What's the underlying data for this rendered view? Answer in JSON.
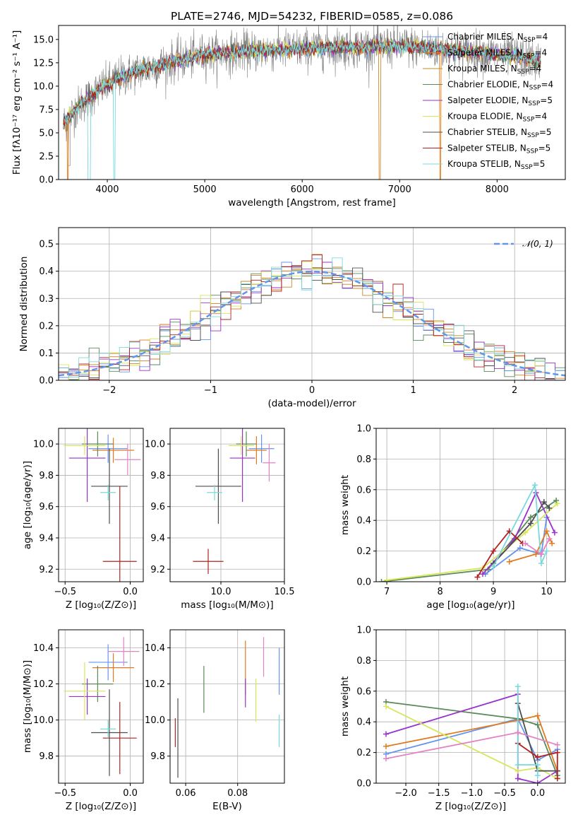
{
  "colors": {
    "blue": "#6495ed",
    "orange": "#e07b20",
    "amber": "#c8882a",
    "green": "#5a8a5a",
    "purple": "#9932cc",
    "yellow": "#d8e65a",
    "dark": "#4d4d4d",
    "red": "#b22222",
    "cyan": "#7ad9dc",
    "pink": "#e383c3",
    "norm": "#6495ed"
  },
  "chart_data": [
    {
      "type": "line",
      "title": "PLATE=2746, MJD=54232, FIBERID=0585, z=0.086",
      "xlabel": "wavelength [Angstrom, rest frame]",
      "ylabel": "Flux [fλ10⁻¹⁷ erg cm⁻² s⁻¹ A⁻¹]",
      "xlim": [
        3500,
        8700
      ],
      "ylim": [
        0,
        16.5
      ],
      "xticks": [
        "4000",
        "5000",
        "6000",
        "7000",
        "8000"
      ],
      "yticks": [
        "0.0",
        "2.5",
        "5.0",
        "7.5",
        "10.0",
        "12.5",
        "15.0"
      ],
      "legend_position": "right",
      "continuum": {
        "x": [
          3550,
          3700,
          3900,
          4100,
          4300,
          4600,
          5000,
          5400,
          5800,
          6200,
          6600,
          7000,
          7400,
          7800,
          8200,
          8450
        ],
        "y": [
          6.0,
          7.8,
          9.5,
          10.8,
          11.6,
          12.4,
          13.4,
          13.7,
          13.9,
          14.1,
          14.2,
          14.3,
          14.0,
          13.6,
          13.2,
          12.6
        ]
      },
      "series": [
        {
          "name": "Chabrier MILES, N_SSP=4",
          "color": "blue"
        },
        {
          "name": "Salpeter MILES, N_SSP=4",
          "color": "orange"
        },
        {
          "name": "Kroupa MILES, N_SSP=4",
          "color": "amber"
        },
        {
          "name": "Chabrier ELODIE, N_SSP=4",
          "color": "green"
        },
        {
          "name": "Salpeter ELODIE, N_SSP=5",
          "color": "purple"
        },
        {
          "name": "Kroupa ELODIE, N_SSP=4",
          "color": "yellow"
        },
        {
          "name": "Chabrier STELIB, N_SSP=5",
          "color": "dark"
        },
        {
          "name": "Salpeter STELIB, N_SSP=5",
          "color": "red"
        },
        {
          "name": "Kroupa STELIB, N_SSP=5",
          "color": "cyan"
        }
      ],
      "legend": [
        {
          "model": "Chabrier MILES, N",
          "sub": "SSP",
          "n": "=4",
          "color": "blue"
        },
        {
          "model": "Salpeter MILES, N",
          "sub": "SSP",
          "n": "=4",
          "color": "orange"
        },
        {
          "model": "Kroupa MILES, N",
          "sub": "SSP",
          "n": "=4",
          "color": "amber"
        },
        {
          "model": "Chabrier ELODIE, N",
          "sub": "SSP",
          "n": "=4",
          "color": "green"
        },
        {
          "model": "Salpeter ELODIE, N",
          "sub": "SSP",
          "n": "=5",
          "color": "purple"
        },
        {
          "model": "Kroupa ELODIE, N",
          "sub": "SSP",
          "n": "=4",
          "color": "yellow"
        },
        {
          "model": "Chabrier STELIB, N",
          "sub": "SSP",
          "n": "=5",
          "color": "dark"
        },
        {
          "model": "Salpeter STELIB, N",
          "sub": "SSP",
          "n": "=5",
          "color": "red"
        },
        {
          "model": "Kroupa STELIB, N",
          "sub": "SSP",
          "n": "=5",
          "color": "cyan"
        }
      ]
    },
    {
      "type": "bar",
      "xlabel": "(data-model)/error",
      "ylabel": "Normed distribution",
      "xlim": [
        -2.5,
        2.5
      ],
      "ylim": [
        0,
        0.56
      ],
      "xticks": [
        "−2",
        "−1",
        "0",
        "1",
        "2"
      ],
      "yticks": [
        "0.0",
        "0.1",
        "0.2",
        "0.3",
        "0.4",
        "0.5"
      ],
      "legend_label": "𝒩(0, 1)",
      "legend_position": "top-right",
      "bin_width": 0.1,
      "histogram_colors": [
        "blue",
        "orange",
        "amber",
        "green",
        "purple",
        "yellow",
        "dark",
        "red",
        "cyan"
      ],
      "reference_curve": "standard normal"
    },
    {
      "type": "scatter",
      "xlabel": "Z [log₁₀(Z/Z⊙)]",
      "ylabel": "age  [log₁₀(age/yr)]",
      "xlim": [
        -0.55,
        0.1
      ],
      "ylim": [
        9.12,
        10.1
      ],
      "xticks": [
        "−0.5",
        "0.0"
      ],
      "yticks": [
        "9.2",
        "9.4",
        "9.6",
        "9.8",
        "10.0"
      ],
      "points": [
        {
          "c": "blue",
          "x": -0.17,
          "dx": 0.15,
          "y": 9.97,
          "dy": 0.09
        },
        {
          "c": "orange",
          "x": -0.13,
          "dx": 0.16,
          "y": 9.96,
          "dy": 0.08
        },
        {
          "c": "green",
          "x": -0.25,
          "dx": 0.12,
          "y": 10.0,
          "dy": 0.08
        },
        {
          "c": "purple",
          "x": -0.33,
          "dx": 0.14,
          "y": 9.91,
          "dy": 0.28
        },
        {
          "c": "yellow",
          "x": -0.35,
          "dx": 0.16,
          "y": 9.99,
          "dy": 0.06
        },
        {
          "c": "dark",
          "x": -0.16,
          "dx": 0.14,
          "y": 9.73,
          "dy": 0.24
        },
        {
          "c": "red",
          "x": -0.08,
          "dx": 0.13,
          "y": 9.25,
          "dy": 0.48
        },
        {
          "c": "cyan",
          "x": -0.17,
          "dx": 0.06,
          "y": 9.69,
          "dy": 0.05
        },
        {
          "c": "pink",
          "x": -0.02,
          "dx": 0.1,
          "y": 9.9,
          "dy": 0.1
        }
      ]
    },
    {
      "type": "scatter",
      "xlabel": "mass [log₁₀(M/M⊙)]",
      "ylabel": "",
      "xlim": [
        9.6,
        10.5
      ],
      "ylim": [
        9.12,
        10.1
      ],
      "xticks": [
        "10.0",
        "10.5"
      ],
      "yticks": [
        "9.2",
        "9.4",
        "9.6",
        "9.8",
        "10.0"
      ],
      "points": [
        {
          "c": "blue",
          "x": 10.32,
          "dx": 0.1,
          "y": 9.97,
          "dy": 0.09
        },
        {
          "c": "orange",
          "x": 10.28,
          "dx": 0.08,
          "y": 9.96,
          "dy": 0.09
        },
        {
          "c": "green",
          "x": 10.2,
          "dx": 0.08,
          "y": 10.0,
          "dy": 0.08
        },
        {
          "c": "purple",
          "x": 10.17,
          "dx": 0.1,
          "y": 9.91,
          "dy": 0.28
        },
        {
          "c": "yellow",
          "x": 10.16,
          "dx": 0.1,
          "y": 9.99,
          "dy": 0.06
        },
        {
          "c": "dark",
          "x": 9.98,
          "dx": 0.18,
          "y": 9.73,
          "dy": 0.24
        },
        {
          "c": "red",
          "x": 9.9,
          "dx": 0.12,
          "y": 9.25,
          "dy": 0.08
        },
        {
          "c": "cyan",
          "x": 9.95,
          "dx": 0.06,
          "y": 9.69,
          "dy": 0.05
        },
        {
          "c": "pink",
          "x": 10.38,
          "dx": 0.05,
          "y": 9.88,
          "dy": 0.12
        }
      ]
    },
    {
      "type": "line",
      "xlabel": "age  [log₁₀(age/yr)]",
      "ylabel": "mass weight",
      "xlim": [
        6.8,
        10.35
      ],
      "ylim": [
        0,
        1.0
      ],
      "xticks": [
        "7",
        "8",
        "9",
        "10"
      ],
      "yticks": [
        "0.0",
        "0.2",
        "0.4",
        "0.6",
        "0.8",
        "1.0"
      ],
      "series": [
        {
          "c": "blue",
          "pts": [
            [
              8.85,
              0.05
            ],
            [
              9.5,
              0.22
            ],
            [
              9.9,
              0.18
            ],
            [
              10.0,
              0.42
            ]
          ]
        },
        {
          "c": "orange",
          "pts": [
            [
              9.3,
              0.13
            ],
            [
              9.8,
              0.18
            ],
            [
              10.0,
              0.33
            ],
            [
              10.1,
              0.25
            ]
          ]
        },
        {
          "c": "green",
          "pts": [
            [
              6.9,
              0.0
            ],
            [
              8.9,
              0.08
            ],
            [
              9.7,
              0.42
            ],
            [
              10.18,
              0.53
            ]
          ]
        },
        {
          "c": "purple",
          "pts": [
            [
              8.8,
              0.05
            ],
            [
              9.4,
              0.28
            ],
            [
              9.8,
              0.58
            ],
            [
              10.15,
              0.32
            ]
          ]
        },
        {
          "c": "yellow",
          "pts": [
            [
              7.0,
              0.01
            ],
            [
              8.8,
              0.09
            ],
            [
              9.6,
              0.32
            ],
            [
              10.2,
              0.51
            ]
          ]
        },
        {
          "c": "dark",
          "pts": [
            [
              9.0,
              0.12
            ],
            [
              9.7,
              0.38
            ],
            [
              9.95,
              0.52
            ],
            [
              10.05,
              0.48
            ]
          ]
        },
        {
          "c": "red",
          "pts": [
            [
              8.7,
              0.03
            ],
            [
              9.0,
              0.2
            ],
            [
              9.3,
              0.33
            ],
            [
              9.55,
              0.25
            ]
          ]
        },
        {
          "c": "cyan",
          "pts": [
            [
              9.0,
              0.1
            ],
            [
              9.78,
              0.63
            ],
            [
              9.9,
              0.12
            ],
            [
              10.0,
              0.2
            ]
          ]
        },
        {
          "c": "pink",
          "pts": [
            [
              9.6,
              0.25
            ],
            [
              9.9,
              0.18
            ],
            [
              10.05,
              0.28
            ]
          ]
        }
      ]
    },
    {
      "type": "scatter",
      "xlabel": "Z [log₁₀(Z/Z⊙)]",
      "ylabel": "mass [log₁₀(M/M⊙)]",
      "xlim": [
        -0.55,
        0.1
      ],
      "ylim": [
        9.65,
        10.5
      ],
      "xticks": [
        "−0.5",
        "0.0"
      ],
      "yticks": [
        "9.8",
        "10.0",
        "10.2",
        "10.4"
      ],
      "points": [
        {
          "c": "blue",
          "x": -0.17,
          "dx": 0.15,
          "y": 10.32,
          "dy": 0.1
        },
        {
          "c": "orange",
          "x": -0.13,
          "dx": 0.16,
          "y": 10.29,
          "dy": 0.08
        },
        {
          "c": "green",
          "x": -0.25,
          "dx": 0.12,
          "y": 10.2,
          "dy": 0.1
        },
        {
          "c": "purple",
          "x": -0.33,
          "dx": 0.14,
          "y": 10.13,
          "dy": 0.1
        },
        {
          "c": "yellow",
          "x": -0.35,
          "dx": 0.16,
          "y": 10.16,
          "dy": 0.16
        },
        {
          "c": "dark",
          "x": -0.16,
          "dx": 0.14,
          "y": 9.93,
          "dy": 0.24
        },
        {
          "c": "red",
          "x": -0.08,
          "dx": 0.13,
          "y": 9.9,
          "dy": 0.2
        },
        {
          "c": "cyan",
          "x": -0.17,
          "dx": 0.06,
          "y": 9.95,
          "dy": 0.05
        },
        {
          "c": "pink",
          "x": -0.05,
          "dx": 0.12,
          "y": 10.38,
          "dy": 0.08
        }
      ]
    },
    {
      "type": "scatter",
      "xlabel": "E(B-V)",
      "ylabel": "",
      "xlim": [
        0.054,
        0.098
      ],
      "ylim": [
        9.65,
        10.5
      ],
      "xticks": [
        "0.06",
        "0.08"
      ],
      "yticks": [
        "9.8",
        "10.0",
        "10.2",
        "10.4"
      ],
      "points": [
        {
          "c": "dark",
          "x": 0.057,
          "y": 9.9,
          "dy": 0.22
        },
        {
          "c": "green",
          "x": 0.067,
          "y": 10.17,
          "dy": 0.13
        },
        {
          "c": "orange",
          "x": 0.083,
          "y": 10.29,
          "dy": 0.15
        },
        {
          "c": "purple",
          "x": 0.083,
          "y": 10.15,
          "dy": 0.08
        },
        {
          "c": "yellow",
          "x": 0.087,
          "y": 10.11,
          "dy": 0.12
        },
        {
          "c": "pink",
          "x": 0.09,
          "y": 10.35,
          "dy": 0.11
        },
        {
          "c": "blue",
          "x": 0.096,
          "y": 10.27,
          "dy": 0.13
        },
        {
          "c": "cyan",
          "x": 0.096,
          "y": 9.94,
          "dy": 0.09
        },
        {
          "c": "red",
          "x": 0.056,
          "y": 9.93,
          "dy": 0.08
        }
      ]
    },
    {
      "type": "line",
      "xlabel": "Z [log₁₀(Z/Z⊙)]",
      "ylabel": "mass weight",
      "xlim": [
        -2.45,
        0.42
      ],
      "ylim": [
        0,
        1.0
      ],
      "xticks": [
        "−2.0",
        "−1.5",
        "−1.0",
        "−0.5",
        "0.0"
      ],
      "yticks": [
        "0.0",
        "0.2",
        "0.4",
        "0.6",
        "0.8",
        "1.0"
      ],
      "series": [
        {
          "c": "blue",
          "pts": [
            [
              -2.3,
              0.19
            ],
            [
              -0.3,
              0.42
            ],
            [
              0.0,
              0.15
            ],
            [
              0.3,
              0.22
            ]
          ]
        },
        {
          "c": "orange",
          "pts": [
            [
              -2.3,
              0.24
            ],
            [
              -0.3,
              0.41
            ],
            [
              0.0,
              0.44
            ],
            [
              0.3,
              0.08
            ]
          ]
        },
        {
          "c": "green",
          "pts": [
            [
              -2.3,
              0.53
            ],
            [
              -0.3,
              0.42
            ],
            [
              0.0,
              0.38
            ],
            [
              0.3,
              0.05
            ]
          ]
        },
        {
          "c": "purple",
          "pts": [
            [
              -2.3,
              0.32
            ],
            [
              -0.3,
              0.58
            ],
            [
              -0.3,
              0.03
            ],
            [
              0.0,
              0.0
            ],
            [
              0.3,
              0.08
            ]
          ]
        },
        {
          "c": "yellow",
          "pts": [
            [
              -2.3,
              0.5
            ],
            [
              -0.3,
              0.08
            ],
            [
              0.0,
              0.1
            ],
            [
              0.3,
              0.03
            ]
          ]
        },
        {
          "c": "dark",
          "pts": [
            [
              -0.3,
              0.52
            ],
            [
              0.0,
              0.08
            ],
            [
              0.3,
              0.08
            ]
          ]
        },
        {
          "c": "red",
          "pts": [
            [
              -0.3,
              0.26
            ],
            [
              0.0,
              0.17
            ],
            [
              0.3,
              0.2
            ],
            [
              0.3,
              0.03
            ]
          ]
        },
        {
          "c": "cyan",
          "pts": [
            [
              -0.3,
              0.63
            ],
            [
              -0.3,
              0.12
            ],
            [
              0.0,
              0.12
            ],
            [
              0.0,
              0.05
            ]
          ]
        },
        {
          "c": "pink",
          "pts": [
            [
              -2.3,
              0.16
            ],
            [
              -0.3,
              0.33
            ],
            [
              0.3,
              0.25
            ]
          ]
        }
      ]
    }
  ]
}
